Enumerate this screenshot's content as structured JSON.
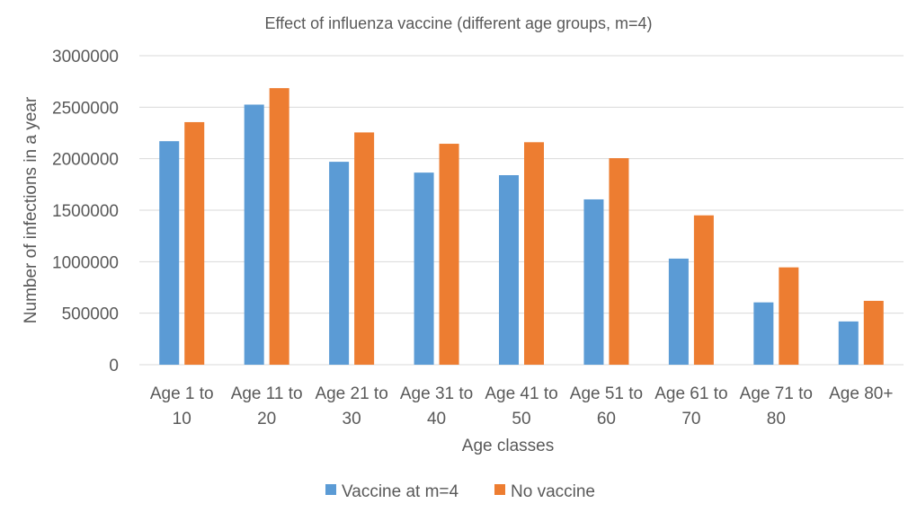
{
  "chart_data": {
    "type": "bar",
    "title": "Effect of influenza vaccine (different age groups, m=4)",
    "xlabel": "Age classes",
    "ylabel": "Number of infections in a year",
    "ylim": [
      0,
      3000000
    ],
    "yticks": [
      0,
      500000,
      1000000,
      1500000,
      2000000,
      2500000,
      3000000
    ],
    "ytick_labels": [
      "0",
      "500000",
      "1000000",
      "1500000",
      "2000000",
      "2500000",
      "3000000"
    ],
    "grid": true,
    "legend_position": "bottom",
    "categories": [
      [
        "Age 1 to",
        "10"
      ],
      [
        "Age 11 to",
        "20"
      ],
      [
        "Age 21 to",
        "30"
      ],
      [
        "Age 31 to",
        "40"
      ],
      [
        "Age 41 to",
        "50"
      ],
      [
        "Age 51 to",
        "60"
      ],
      [
        "Age 61 to",
        "70"
      ],
      [
        "Age 71 to",
        "80"
      ],
      [
        "Age 80+"
      ]
    ],
    "series": [
      {
        "name": "Vaccine at m=4",
        "color": "#5b9bd5",
        "values": [
          2170000,
          2525000,
          1970000,
          1865000,
          1840000,
          1605000,
          1030000,
          605000,
          420000
        ]
      },
      {
        "name": "No vaccine",
        "color": "#ed7d31",
        "values": [
          2355000,
          2685000,
          2255000,
          2145000,
          2160000,
          2005000,
          1450000,
          945000,
          620000
        ]
      }
    ]
  }
}
